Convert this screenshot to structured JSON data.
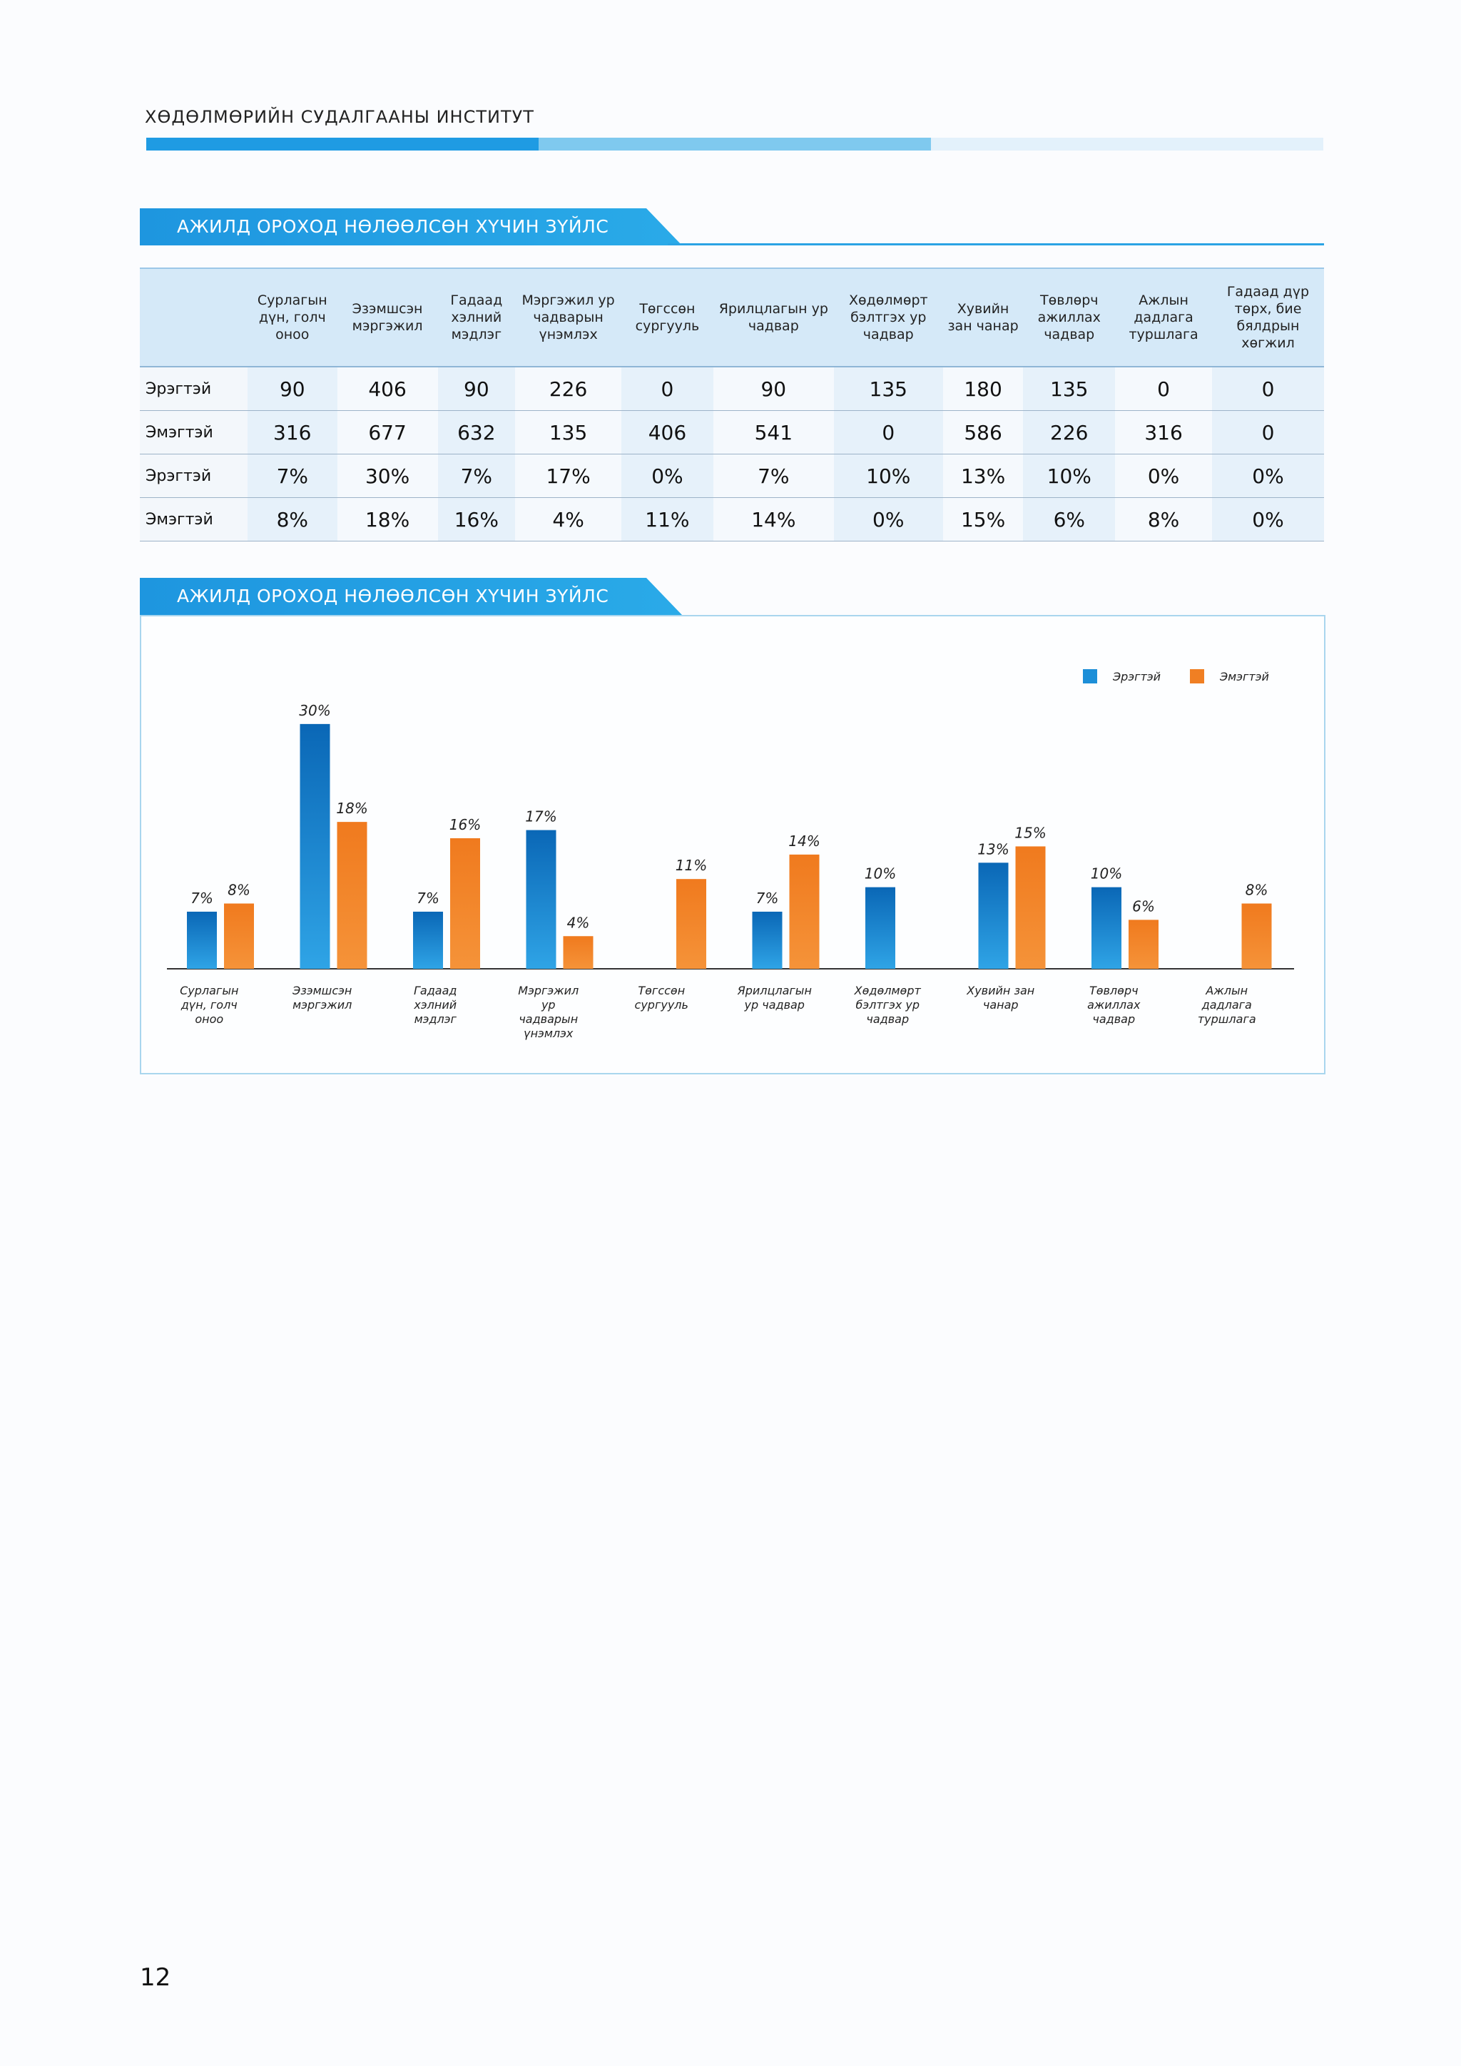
{
  "header": {
    "institute": "ХӨДӨЛМӨРИЙН СУДАЛГААНЫ ИНСТИТУТ"
  },
  "table_section": {
    "title": "АЖИЛД ОРОХОД НӨЛӨӨЛСӨН ХҮЧИН ЗҮЙЛС",
    "columns": [
      "Сурлагын дүн, голч оноо",
      "Эзэмшсэн мэргэжил",
      "Гадаад хэлний мэдлэг",
      "Мэргэжил ур чадварын үнэмлэх",
      "Төгссөн сургууль",
      "Ярилцлагын ур чадвар",
      "Хөдөлмөрт бэлтгэх ур чадвар",
      "Хувийн зан чанар",
      "Төвлөрч ажиллах чадвар",
      "Ажлын дадлага туршлага",
      "Гадаад дүр төрх, бие бялдрын хөгжил"
    ],
    "rows": [
      {
        "label": "Эрэгтэй",
        "values": [
          "90",
          "406",
          "90",
          "226",
          "0",
          "90",
          "135",
          "180",
          "135",
          "0",
          "0"
        ]
      },
      {
        "label": "Эмэгтэй",
        "values": [
          "316",
          "677",
          "632",
          "135",
          "406",
          "541",
          "0",
          "586",
          "226",
          "316",
          "0"
        ]
      },
      {
        "label": "Эрэгтэй",
        "values": [
          "7%",
          "30%",
          "7%",
          "17%",
          "0%",
          "7%",
          "10%",
          "13%",
          "10%",
          "0%",
          "0%"
        ]
      },
      {
        "label": "Эмэгтэй",
        "values": [
          "8%",
          "18%",
          "16%",
          "4%",
          "11%",
          "14%",
          "0%",
          "15%",
          "6%",
          "8%",
          "0%"
        ]
      }
    ]
  },
  "chart_section": {
    "title": "АЖИЛД ОРОХОД НӨЛӨӨЛСӨН ХҮЧИН ЗҮЙЛС"
  },
  "chart_data": {
    "type": "bar",
    "title": "АЖИЛД ОРОХОД НӨЛӨӨЛСӨН ХҮЧИН ЗҮЙЛС",
    "categories": [
      [
        "Сурлагын",
        "дүн, голч",
        "оноо"
      ],
      [
        "Эзэмшсэн",
        "мэргэжил"
      ],
      [
        "Гадаад",
        "хэлний",
        "мэдлэг"
      ],
      [
        "Мэргэжил",
        "ур",
        "чадварын",
        "үнэмлэх"
      ],
      [
        "Төгссөн",
        "сургууль"
      ],
      [
        "Ярилцлагын",
        "ур чадвар"
      ],
      [
        "Хөдөлмөрт",
        "бэлтгэх ур",
        "чадвар"
      ],
      [
        "Хувийн зан",
        "чанар"
      ],
      [
        "Төвлөрч",
        "ажиллах",
        "чадвар"
      ],
      [
        "Ажлын",
        "дадлага",
        "туршлага"
      ]
    ],
    "series": [
      {
        "name": "Эрэгтэй",
        "color": "#1d8fd8",
        "values": [
          7,
          30,
          7,
          17,
          0,
          7,
          10,
          13,
          10,
          0
        ]
      },
      {
        "name": "Эмэгтэй",
        "color": "#f07f23",
        "values": [
          8,
          18,
          16,
          4,
          11,
          14,
          0,
          15,
          6,
          8
        ]
      }
    ],
    "value_suffix": "%",
    "legend_position": "top-right",
    "ylim": [
      0,
      32
    ],
    "xlabel": "",
    "ylabel": ""
  },
  "footer": {
    "page_number": "12"
  }
}
